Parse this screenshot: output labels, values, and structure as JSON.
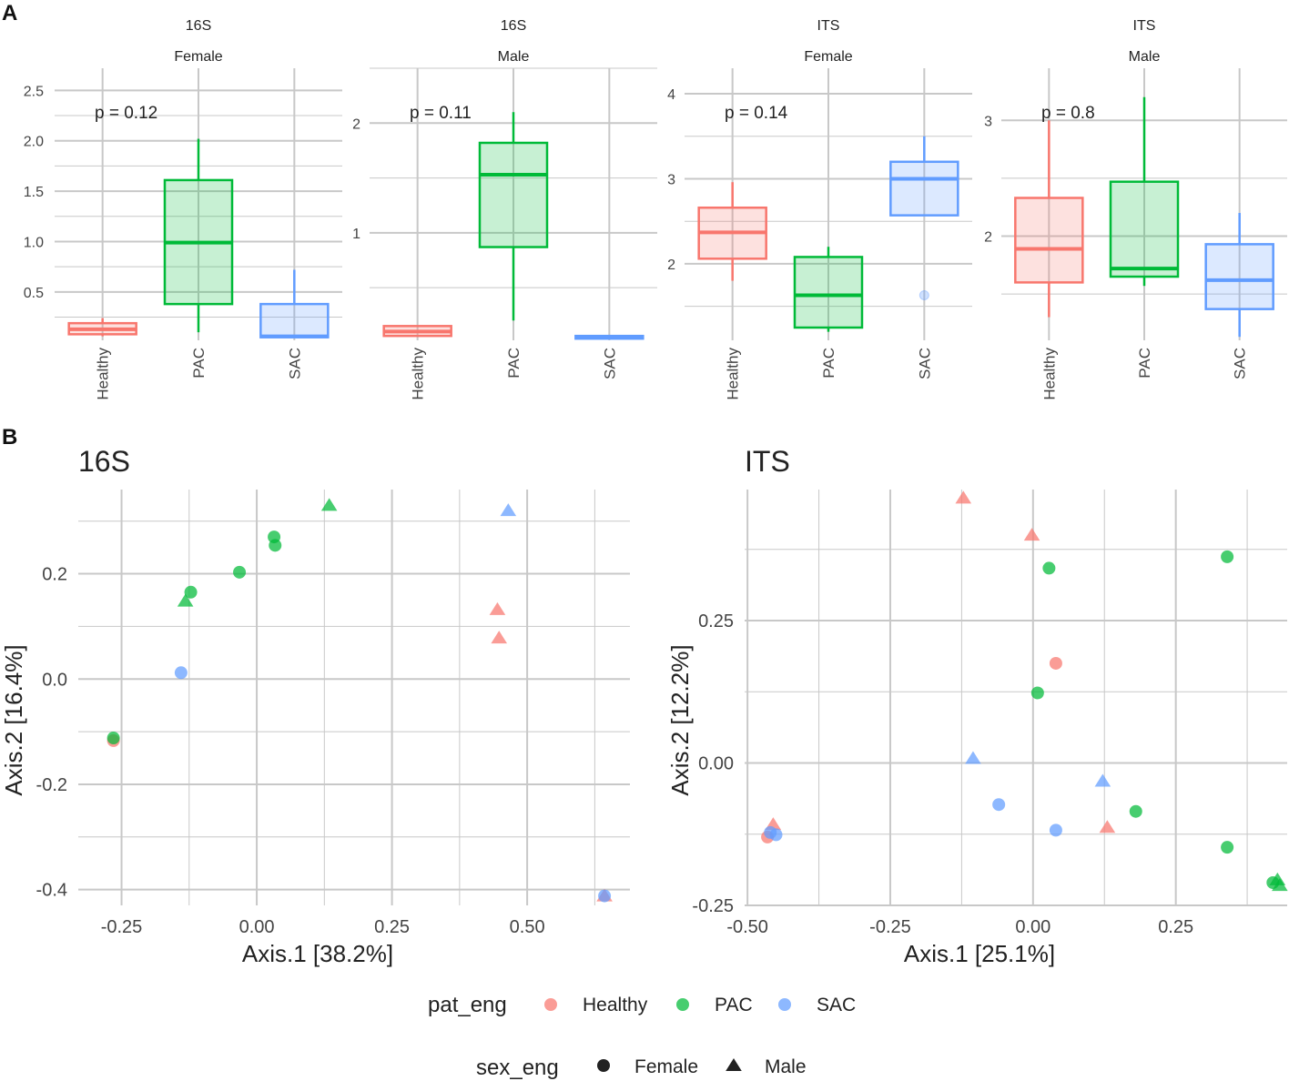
{
  "colors": {
    "Healthy": "#F8766D",
    "PAC": "#00BA38",
    "SAC": "#619CFF",
    "grid": "#c8c8c8",
    "text": "#222222",
    "tick": "#444444"
  },
  "panel_labels": [
    "A",
    "B"
  ],
  "chart_data": [
    {
      "type": "box",
      "title": "16S",
      "subtitle": "Female",
      "annotation": "p = 0.12",
      "categories": [
        "Healthy",
        "PAC",
        "SAC"
      ],
      "ylim": [
        0.02,
        2.72
      ],
      "yticks": [
        {
          "v": 0.5,
          "label": "0.5"
        },
        {
          "v": 1.0,
          "label": "1.0"
        },
        {
          "v": 1.5,
          "label": "1.5"
        },
        {
          "v": 2.0,
          "label": "2.0"
        },
        {
          "v": 2.5,
          "label": "2.5"
        }
      ],
      "minor": [
        0.25,
        0.75,
        1.25,
        1.75,
        2.25
      ],
      "boxes": [
        {
          "group": "Healthy",
          "min": 0.06,
          "q1": 0.08,
          "median": 0.13,
          "q3": 0.19,
          "max": 0.24,
          "outliers": []
        },
        {
          "group": "PAC",
          "min": 0.1,
          "q1": 0.38,
          "median": 0.99,
          "q3": 1.61,
          "max": 2.02,
          "outliers": []
        },
        {
          "group": "SAC",
          "min": 0.05,
          "q1": 0.05,
          "median": 0.06,
          "q3": 0.38,
          "max": 0.72,
          "outliers": []
        }
      ]
    },
    {
      "type": "box",
      "title": "16S",
      "subtitle": "Male",
      "annotation": "p = 0.11",
      "categories": [
        "Healthy",
        "PAC",
        "SAC"
      ],
      "ylim": [
        0.02,
        2.5
      ],
      "yticks": [
        {
          "v": 1.0,
          "label": "1"
        },
        {
          "v": 2.0,
          "label": "2"
        }
      ],
      "minor": [
        0.5,
        1.5,
        2.5
      ],
      "boxes": [
        {
          "group": "Healthy",
          "min": 0.06,
          "q1": 0.06,
          "median": 0.1,
          "q3": 0.15,
          "max": 0.15,
          "outliers": []
        },
        {
          "group": "PAC",
          "min": 0.2,
          "q1": 0.87,
          "median": 1.53,
          "q3": 1.82,
          "max": 2.1,
          "outliers": []
        },
        {
          "group": "SAC",
          "min": 0.04,
          "q1": 0.04,
          "median": 0.05,
          "q3": 0.06,
          "max": 0.06,
          "outliers": []
        }
      ]
    },
    {
      "type": "box",
      "title": "ITS",
      "subtitle": "Female",
      "annotation": "p = 0.14",
      "categories": [
        "Healthy",
        "PAC",
        "SAC"
      ],
      "ylim": [
        1.1,
        4.3
      ],
      "yticks": [
        {
          "v": 2,
          "label": "2"
        },
        {
          "v": 3,
          "label": "3"
        },
        {
          "v": 4,
          "label": "4"
        }
      ],
      "minor": [
        1.5,
        2.5,
        3.5
      ],
      "boxes": [
        {
          "group": "Healthy",
          "min": 1.8,
          "q1": 2.06,
          "median": 2.37,
          "q3": 2.66,
          "max": 2.96,
          "outliers": []
        },
        {
          "group": "PAC",
          "min": 1.2,
          "q1": 1.25,
          "median": 1.63,
          "q3": 2.08,
          "max": 2.2,
          "outliers": []
        },
        {
          "group": "SAC",
          "min": 2.57,
          "q1": 2.57,
          "median": 3.0,
          "q3": 3.2,
          "max": 3.5,
          "outliers": [
            1.63
          ]
        }
      ]
    },
    {
      "type": "box",
      "title": "ITS",
      "subtitle": "Male",
      "annotation": "p = 0.8",
      "categories": [
        "Healthy",
        "PAC",
        "SAC"
      ],
      "ylim": [
        1.1,
        3.45
      ],
      "yticks": [
        {
          "v": 2,
          "label": "2"
        },
        {
          "v": 3,
          "label": "3"
        }
      ],
      "minor": [
        1.5,
        2.5
      ],
      "boxes": [
        {
          "group": "Healthy",
          "min": 1.3,
          "q1": 1.6,
          "median": 1.89,
          "q3": 2.33,
          "max": 3.0,
          "outliers": []
        },
        {
          "group": "PAC",
          "min": 1.57,
          "q1": 1.65,
          "median": 1.72,
          "q3": 2.47,
          "max": 3.2,
          "outliers": []
        },
        {
          "group": "SAC",
          "min": 1.13,
          "q1": 1.37,
          "median": 1.62,
          "q3": 1.93,
          "max": 2.2,
          "outliers": []
        }
      ]
    },
    {
      "type": "scatter",
      "title": "16S",
      "xlabel": "Axis.1   [38.2%]",
      "ylabel": "Axis.2   [16.4%]",
      "xlim": [
        -0.33,
        0.69
      ],
      "ylim": [
        -0.43,
        0.36
      ],
      "xticks": [
        {
          "v": -0.25,
          "label": "-0.25"
        },
        {
          "v": 0,
          "label": "0.00"
        },
        {
          "v": 0.25,
          "label": "0.25"
        },
        {
          "v": 0.5,
          "label": "0.50"
        }
      ],
      "yticks": [
        {
          "v": -0.4,
          "label": "-0.4"
        },
        {
          "v": -0.2,
          "label": "-0.2"
        },
        {
          "v": 0,
          "label": "0.0"
        },
        {
          "v": 0.2,
          "label": "0.2"
        }
      ],
      "xminor": [
        -0.125,
        0.125,
        0.375,
        0.625
      ],
      "yminor": [
        -0.3,
        -0.1,
        0.1,
        0.3
      ],
      "points": [
        {
          "x": -0.265,
          "y": -0.117,
          "group": "Healthy",
          "sex": "Female"
        },
        {
          "x": -0.265,
          "y": -0.112,
          "group": "PAC",
          "sex": "Female"
        },
        {
          "x": -0.132,
          "y": 0.148,
          "group": "PAC",
          "sex": "Male"
        },
        {
          "x": -0.122,
          "y": 0.165,
          "group": "PAC",
          "sex": "Female"
        },
        {
          "x": -0.14,
          "y": 0.012,
          "group": "SAC",
          "sex": "Female"
        },
        {
          "x": -0.032,
          "y": 0.203,
          "group": "PAC",
          "sex": "Female"
        },
        {
          "x": 0.032,
          "y": 0.27,
          "group": "PAC",
          "sex": "Female"
        },
        {
          "x": 0.034,
          "y": 0.254,
          "group": "PAC",
          "sex": "Female"
        },
        {
          "x": 0.134,
          "y": 0.33,
          "group": "PAC",
          "sex": "Male"
        },
        {
          "x": 0.465,
          "y": 0.32,
          "group": "SAC",
          "sex": "Male"
        },
        {
          "x": 0.445,
          "y": 0.132,
          "group": "Healthy",
          "sex": "Male"
        },
        {
          "x": 0.448,
          "y": 0.078,
          "group": "Healthy",
          "sex": "Male"
        },
        {
          "x": 0.643,
          "y": -0.412,
          "group": "Healthy",
          "sex": "Male"
        },
        {
          "x": 0.643,
          "y": -0.412,
          "group": "SAC",
          "sex": "Female"
        }
      ]
    },
    {
      "type": "scatter",
      "title": "ITS",
      "xlabel": "Axis.1   [25.1%]",
      "ylabel": "Axis.2   [12.2%]",
      "xlim": [
        -0.505,
        0.445
      ],
      "ylim": [
        -0.25,
        0.48
      ],
      "xticks": [
        {
          "v": -0.5,
          "label": "-0.50"
        },
        {
          "v": -0.25,
          "label": "-0.25"
        },
        {
          "v": 0,
          "label": "0.00"
        },
        {
          "v": 0.25,
          "label": "0.25"
        }
      ],
      "yticks": [
        {
          "v": -0.25,
          "label": "-0.25"
        },
        {
          "v": 0,
          "label": "0.00"
        },
        {
          "v": 0.25,
          "label": "0.25"
        }
      ],
      "xminor": [
        -0.375,
        -0.125,
        0.125,
        0.375
      ],
      "yminor": [
        -0.125,
        0.125,
        0.375
      ],
      "points": [
        {
          "x": -0.122,
          "y": 0.465,
          "group": "Healthy",
          "sex": "Male"
        },
        {
          "x": -0.002,
          "y": 0.4,
          "group": "Healthy",
          "sex": "Male"
        },
        {
          "x": 0.028,
          "y": 0.342,
          "group": "PAC",
          "sex": "Female"
        },
        {
          "x": 0.34,
          "y": 0.362,
          "group": "PAC",
          "sex": "Female"
        },
        {
          "x": 0.04,
          "y": 0.175,
          "group": "Healthy",
          "sex": "Female"
        },
        {
          "x": 0.008,
          "y": 0.123,
          "group": "PAC",
          "sex": "Female"
        },
        {
          "x": -0.105,
          "y": 0.008,
          "group": "SAC",
          "sex": "Male"
        },
        {
          "x": 0.122,
          "y": -0.032,
          "group": "SAC",
          "sex": "Male"
        },
        {
          "x": -0.06,
          "y": -0.073,
          "group": "SAC",
          "sex": "Female"
        },
        {
          "x": 0.04,
          "y": -0.118,
          "group": "SAC",
          "sex": "Female"
        },
        {
          "x": 0.13,
          "y": -0.113,
          "group": "Healthy",
          "sex": "Male"
        },
        {
          "x": 0.18,
          "y": -0.085,
          "group": "PAC",
          "sex": "Female"
        },
        {
          "x": 0.34,
          "y": -0.148,
          "group": "PAC",
          "sex": "Female"
        },
        {
          "x": 0.42,
          "y": -0.21,
          "group": "PAC",
          "sex": "Female"
        },
        {
          "x": 0.428,
          "y": -0.205,
          "group": "PAC",
          "sex": "Male"
        },
        {
          "x": 0.432,
          "y": -0.215,
          "group": "PAC",
          "sex": "Male"
        },
        {
          "x": -0.465,
          "y": -0.13,
          "group": "Healthy",
          "sex": "Female"
        },
        {
          "x": -0.455,
          "y": -0.108,
          "group": "Healthy",
          "sex": "Male"
        },
        {
          "x": -0.46,
          "y": -0.122,
          "group": "SAC",
          "sex": "Female"
        },
        {
          "x": -0.45,
          "y": -0.126,
          "group": "SAC",
          "sex": "Female"
        }
      ]
    }
  ],
  "legend": {
    "color_title": "pat_eng",
    "groups": [
      "Healthy",
      "PAC",
      "SAC"
    ],
    "shape_title": "sex_eng",
    "shapes": [
      "Female",
      "Male"
    ]
  }
}
